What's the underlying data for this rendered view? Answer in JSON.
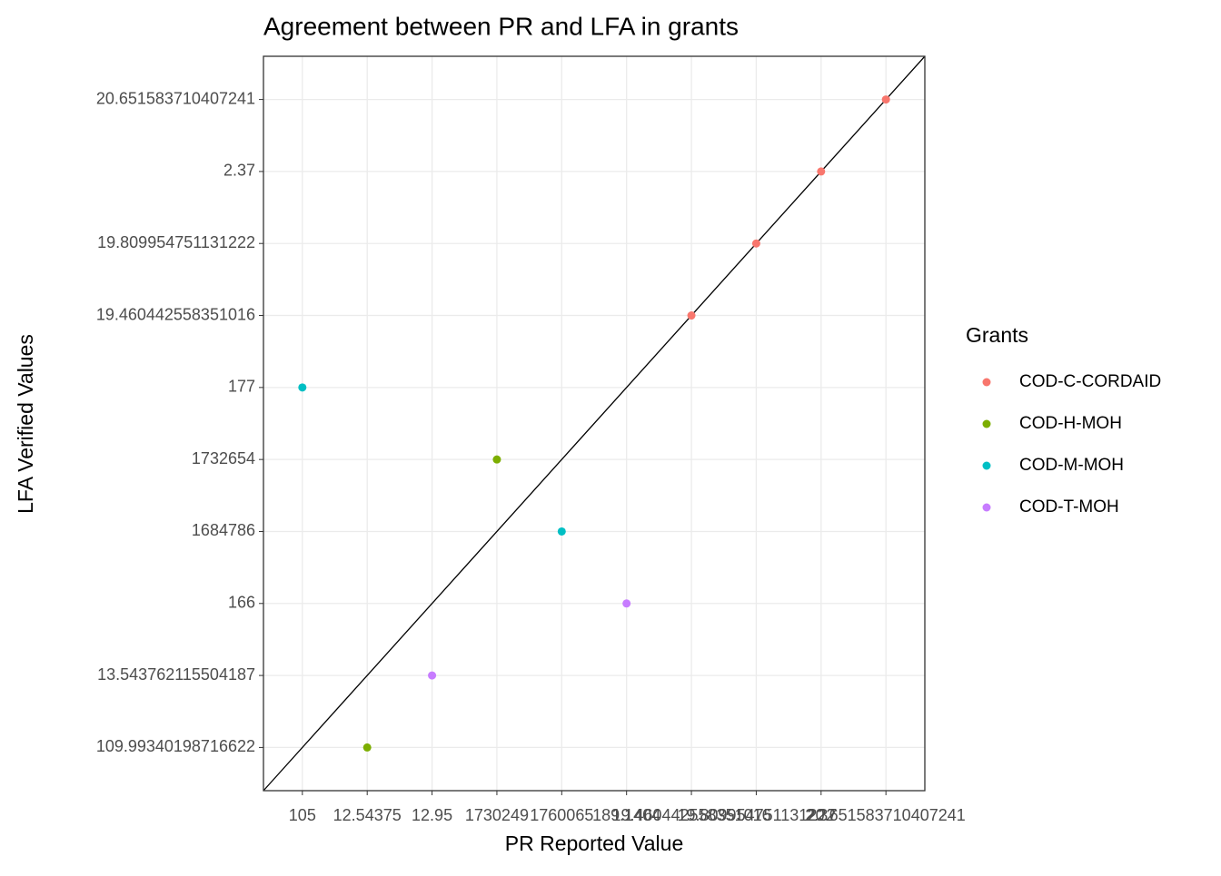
{
  "chart_data": {
    "type": "scatter",
    "title": "Agreement between PR and LFA in grants",
    "x_label": "PR Reported Value",
    "y_label": "LFA Verified Values",
    "x_categories": [
      "105",
      "12.54375",
      "12.95",
      "1730249",
      "1760065",
      "189.1404",
      "19.460442558351016",
      "19.809954751131222",
      "2.37",
      "20.651583710407241"
    ],
    "y_categories": [
      "109.99340198716622",
      "13.543762115504187",
      "166",
      "1684786",
      "1732654",
      "177",
      "19.460442558351016",
      "19.809954751131222",
      "2.37",
      "20.651583710407241"
    ],
    "legend_title": "Grants",
    "grid": true,
    "series": [
      {
        "name": "COD-C-CORDAID",
        "color": "#F8766D",
        "x": [
          "19.460442558351016",
          "19.809954751131222",
          "2.37",
          "20.651583710407241"
        ],
        "y": [
          "19.460442558351016",
          "19.809954751131222",
          "2.37",
          "20.651583710407241"
        ]
      },
      {
        "name": "COD-H-MOH",
        "color": "#7CAE00",
        "x": [
          "12.54375",
          "1730249"
        ],
        "y": [
          "109.99340198716622",
          "1732654"
        ]
      },
      {
        "name": "COD-M-MOH",
        "color": "#00BFC4",
        "x": [
          "105",
          "1760065"
        ],
        "y": [
          "177",
          "1684786"
        ]
      },
      {
        "name": "COD-T-MOH",
        "color": "#C77CFF",
        "x": [
          "12.95",
          "189.1404"
        ],
        "y": [
          "13.543762115504187",
          "166"
        ]
      }
    ]
  }
}
